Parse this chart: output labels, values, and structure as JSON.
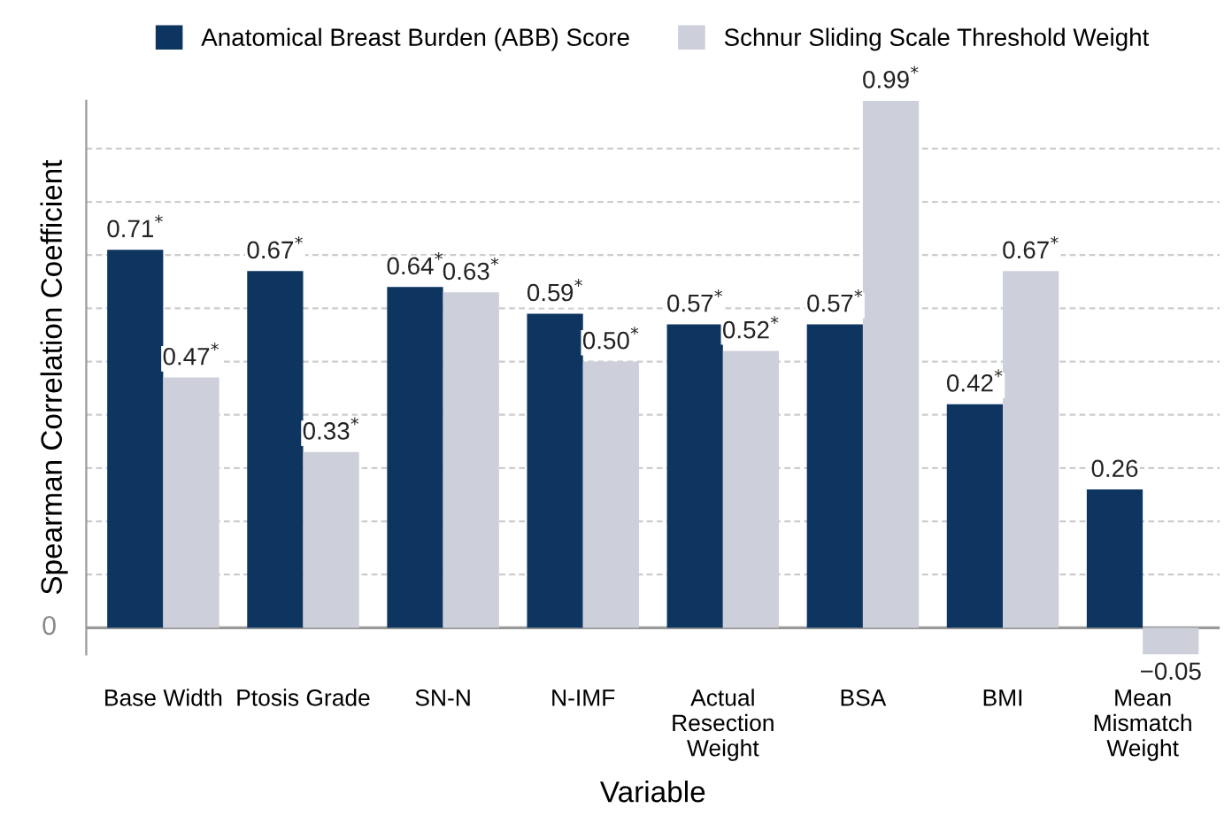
{
  "chart_data": {
    "type": "bar",
    "xlabel": "Variable",
    "ylabel": "Spearman Correlation Coefficient",
    "categories": [
      "Base Width",
      "Ptosis Grade",
      "SN-N",
      "N-IMF",
      "Actual\nResection\nWeight",
      "BSA",
      "BMI",
      "Mean\nMismatch\nWeight"
    ],
    "series": [
      {
        "name": "Anatomical Breast Burden (ABB) Score",
        "color": "#0d3560",
        "values": [
          0.71,
          0.67,
          0.64,
          0.59,
          0.57,
          0.57,
          0.42,
          0.26
        ],
        "value_labels": [
          "0.71$^{*}$",
          "0.67$^{*}$",
          "0.64$^{*}$",
          "0.59$^{*}$",
          "0.57$^{*}$",
          "0.57$^{*}$",
          "0.42$^{*}$",
          "0.26"
        ]
      },
      {
        "name": "Schnur Sliding Scale Threshold Weight",
        "color": "#cdd0da",
        "values": [
          0.47,
          0.33,
          0.63,
          0.5,
          0.52,
          0.99,
          0.67,
          -0.05
        ],
        "value_labels": [
          "0.47$^{*}$",
          "0.33$^{*}$",
          "0.63$^{*}$",
          "0.50$^{*}$",
          "0.52$^{*}$",
          "0.99$^{*}$",
          "0.67$^{*}$",
          "−0.05"
        ]
      }
    ],
    "ylim": [
      -0.05,
      0.99
    ],
    "annotations": [
      "0"
    ],
    "yticks": [
      {
        "value": 0,
        "label": null
      },
      {
        "value": 0.1,
        "label": null
      },
      {
        "value": 0.2,
        "label": null
      },
      {
        "value": 0.3,
        "label": null
      },
      {
        "value": 0.4,
        "label": null
      },
      {
        "value": 0.5,
        "label": null
      },
      {
        "value": 0.6,
        "label": null
      },
      {
        "value": 0.7,
        "label": null
      },
      {
        "value": 0.8,
        "label": null
      },
      {
        "value": 0.9,
        "label": null
      }
    ],
    "grid": "y",
    "legend": "top"
  }
}
